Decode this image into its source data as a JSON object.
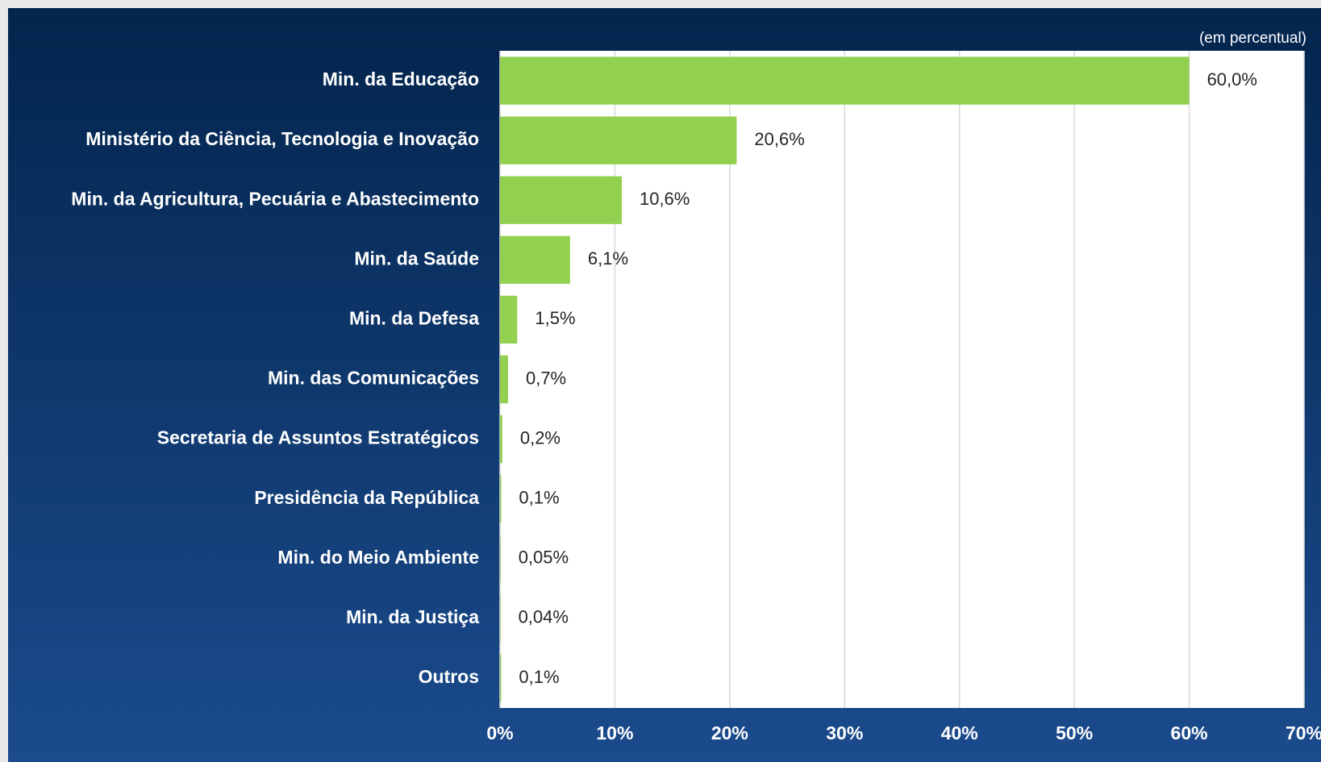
{
  "chart_data": {
    "type": "barh",
    "subtitle": "(em percentual)",
    "categories": [
      "Min. da Educação",
      "Ministério da Ciência, Tecnologia e Inovação",
      "Min. da Agricultura, Pecuária e Abastecimento",
      "Min. da Saúde",
      "Min. da Defesa",
      "Min. das Comunicações",
      "Secretaria de Assuntos Estratégicos",
      "Presidência da República",
      "Min. do Meio Ambiente",
      "Min. da Justiça",
      "Outros"
    ],
    "values": [
      60.0,
      20.6,
      10.6,
      6.1,
      1.5,
      0.7,
      0.2,
      0.1,
      0.05,
      0.04,
      0.1
    ],
    "value_labels": [
      "60,0%",
      "20,6%",
      "10,6%",
      "6,1%",
      "1,5%",
      "0,7%",
      "0,2%",
      "0,1%",
      "0,05%",
      "0,04%",
      "0,1%"
    ],
    "color": "#92d050",
    "xlim": [
      0,
      70
    ],
    "xticks": [
      {
        "value": 0,
        "label": "0%"
      },
      {
        "value": 10,
        "label": "10%"
      },
      {
        "value": 20,
        "label": "20%"
      },
      {
        "value": 30,
        "label": "30%"
      },
      {
        "value": 40,
        "label": "40%"
      },
      {
        "value": 50,
        "label": "50%"
      },
      {
        "value": 60,
        "label": "60%"
      },
      {
        "value": 70,
        "label": "70%"
      }
    ],
    "grid": true
  }
}
